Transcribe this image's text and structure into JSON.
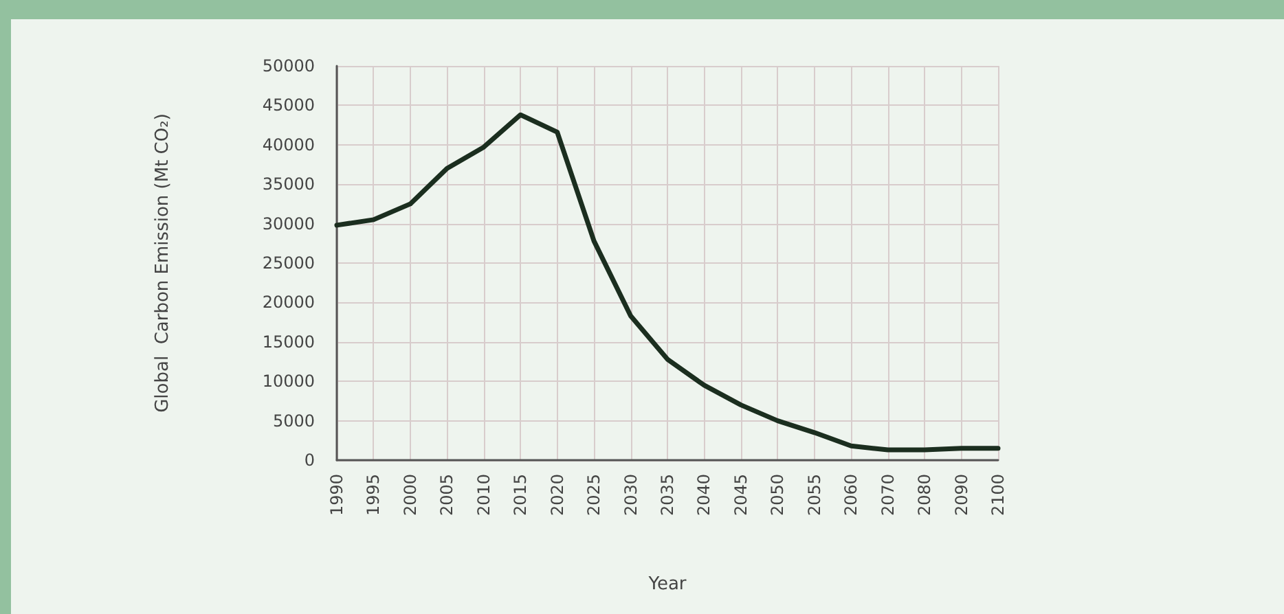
{
  "chart_data": {
    "type": "line",
    "xlabel": "Year",
    "ylabel": "Global  Carbon Emission (Mt CO₂)",
    "categories": [
      "1990",
      "1995",
      "2000",
      "2005",
      "2010",
      "2015",
      "2020",
      "2025",
      "2030",
      "2035",
      "2040",
      "2045",
      "2050",
      "2055",
      "2060",
      "2070",
      "2080",
      "2090",
      "2100"
    ],
    "series": [
      {
        "color": "#1b2e1f",
        "values": [
          29800,
          30500,
          32500,
          37000,
          39700,
          43800,
          41600,
          27800,
          18300,
          12800,
          9500,
          7000,
          5000,
          3500,
          1800,
          1300,
          1300,
          1500,
          1500
        ]
      }
    ],
    "ylim": [
      0,
      50000
    ],
    "yticks": [
      0,
      5000,
      10000,
      15000,
      20000,
      25000,
      30000,
      35000,
      40000,
      45000,
      50000
    ],
    "grid": true,
    "marker": "none",
    "line_style": "solid"
  }
}
